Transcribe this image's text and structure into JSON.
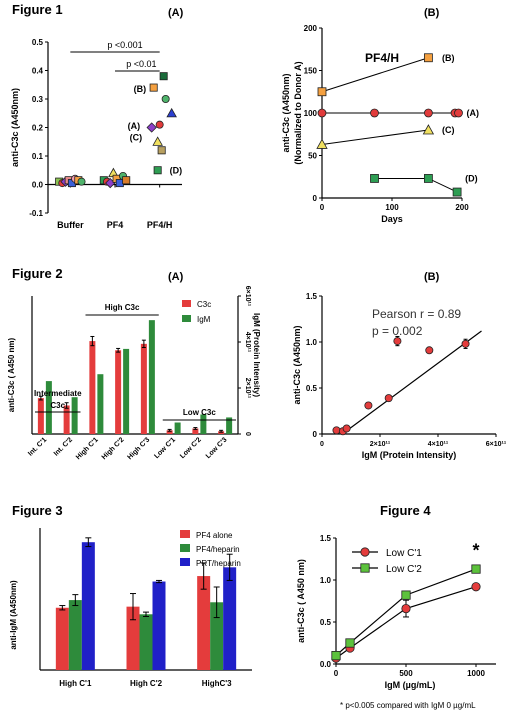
{
  "figures": {
    "fig1": "Figure 1",
    "fig2": "Figure 2",
    "fig3": "Figure 3",
    "fig4": "Figure 4",
    "panelA": "(A)",
    "panelB": "(B)"
  },
  "footnote": "* p<0.005 compared with IgM 0 µg/mL",
  "chart_data": [
    {
      "id": "fig1A",
      "type": "scatter",
      "ylabel": "anti-C3c (A450nm)",
      "ylim": [
        -0.1,
        0.5
      ],
      "yticks": [
        "-0.1",
        "0.0",
        "0.1",
        "0.2",
        "0.3",
        "0.4",
        "0.5"
      ],
      "categories": [
        "Buffer",
        "PF4",
        "PF4/H"
      ],
      "significance": [
        "p <0.001",
        "p <0.01"
      ],
      "point_labels": [
        "(A)",
        "(B)",
        "(C)",
        "(D)"
      ],
      "points": [
        {
          "cat": "Buffer",
          "y": 0.01,
          "shape": "square",
          "color": "#8cc152"
        },
        {
          "cat": "Buffer",
          "y": 0.005,
          "shape": "circle",
          "color": "#e13b3b"
        },
        {
          "cat": "Buffer",
          "y": 0.01,
          "shape": "diamond",
          "color": "#8b3fc8"
        },
        {
          "cat": "Buffer",
          "y": 0.015,
          "shape": "square",
          "color": "#e88a8a"
        },
        {
          "cat": "Buffer",
          "y": 0.005,
          "shape": "square",
          "color": "#3a5fd9"
        },
        {
          "cat": "Buffer",
          "y": 0.02,
          "shape": "circle",
          "color": "#f29ab0"
        },
        {
          "cat": "Buffer",
          "y": 0.015,
          "shape": "square",
          "color": "#f4a040"
        },
        {
          "cat": "Buffer",
          "y": 0.01,
          "shape": "circle",
          "color": "#4fb36b"
        },
        {
          "cat": "PF4",
          "y": 0.015,
          "shape": "square",
          "color": "#2e9e53"
        },
        {
          "cat": "PF4",
          "y": 0.01,
          "shape": "circle",
          "color": "#e13b3b"
        },
        {
          "cat": "PF4",
          "y": 0.005,
          "shape": "diamond",
          "color": "#8b3fc8"
        },
        {
          "cat": "PF4",
          "y": 0.04,
          "shape": "triangle",
          "color": "#f0e060"
        },
        {
          "cat": "PF4",
          "y": 0.02,
          "shape": "square",
          "color": "#f4a040"
        },
        {
          "cat": "PF4",
          "y": 0.005,
          "shape": "square",
          "color": "#3a5fd9"
        },
        {
          "cat": "PF4",
          "y": 0.03,
          "shape": "circle",
          "color": "#4fb36b"
        },
        {
          "cat": "PF4",
          "y": 0.015,
          "shape": "square",
          "color": "#d97c2b"
        },
        {
          "cat": "PF4/H",
          "y": 0.38,
          "shape": "square",
          "color": "#1b6b3a"
        },
        {
          "cat": "PF4/H",
          "y": 0.34,
          "shape": "square",
          "color": "#f4a040"
        },
        {
          "cat": "PF4/H",
          "y": 0.3,
          "shape": "circle",
          "color": "#4fb36b"
        },
        {
          "cat": "PF4/H",
          "y": 0.25,
          "shape": "triangle",
          "color": "#2b3fd0"
        },
        {
          "cat": "PF4/H",
          "y": 0.21,
          "shape": "circle",
          "color": "#e13b3b"
        },
        {
          "cat": "PF4/H",
          "y": 0.2,
          "shape": "diamond",
          "color": "#8b3fc8"
        },
        {
          "cat": "PF4/H",
          "y": 0.15,
          "shape": "triangle",
          "color": "#f0e060"
        },
        {
          "cat": "PF4/H",
          "y": 0.12,
          "shape": "square",
          "color": "#b8a060"
        },
        {
          "cat": "PF4/H",
          "y": 0.05,
          "shape": "square",
          "color": "#2e9e53"
        }
      ]
    },
    {
      "id": "fig1B",
      "type": "line",
      "title": "PF4/H",
      "ylabel": "anti-C3c (A450nm)",
      "ylabel2": "(Normalized to Donor A)",
      "xlabel": "Days",
      "ylim": [
        0,
        200
      ],
      "xlim": [
        0,
        200
      ],
      "yticks": [
        "0",
        "50",
        "100",
        "150",
        "200"
      ],
      "xticks": [
        "0",
        "100",
        "200"
      ],
      "series": [
        {
          "name": "(B)",
          "color": "#f4a040",
          "shape": "square",
          "x": [
            0,
            152
          ],
          "y": [
            125,
            165
          ]
        },
        {
          "name": "(A)",
          "color": "#e13b3b",
          "shape": "circle",
          "x": [
            0,
            75,
            152,
            190,
            195
          ],
          "y": [
            100,
            100,
            100,
            100,
            100
          ]
        },
        {
          "name": "(C)",
          "color": "#f0e060",
          "shape": "triangle",
          "x": [
            0,
            152
          ],
          "y": [
            63,
            80
          ]
        },
        {
          "name": "(D)",
          "color": "#2e9e53",
          "shape": "square",
          "x": [
            75,
            152,
            193
          ],
          "y": [
            23,
            23,
            7
          ]
        }
      ]
    },
    {
      "id": "fig2A",
      "type": "bar",
      "ylabel": "anti-C3c ( A450 nm)",
      "ylabel2": "IgM (Protein Intensity)",
      "ylim": [
        0,
        1.5
      ],
      "y2lim": [
        0,
        600000000000.0
      ],
      "y2ticks": [
        "0",
        "2×10¹¹",
        "4×10¹¹",
        "6×10¹¹"
      ],
      "categories": [
        "Int. C'1",
        "Int. C'2",
        "High C'1",
        "High C'2",
        "High C'3",
        "Low C'1",
        "Low C'2",
        "Low C'3"
      ],
      "group_labels": [
        "Intermediate",
        "C3c",
        "High C3c",
        "Low C3c"
      ],
      "series": [
        {
          "name": "C3c",
          "color": "#e43c3c",
          "values": [
            0.39,
            0.31,
            1.01,
            0.91,
            0.98,
            0.04,
            0.06,
            0.03
          ],
          "errors": [
            0.02,
            0.03,
            0.05,
            0.02,
            0.04,
            0.01,
            0.01,
            0.01
          ]
        },
        {
          "name": "IgM",
          "color": "#2e8b3b",
          "values2": [
            230000000000.0,
            160000000000.0,
            260000000000.0,
            370000000000.0,
            495000000000.0,
            50000000000.0,
            85000000000.0,
            72000000000.0
          ]
        }
      ]
    },
    {
      "id": "fig2B",
      "type": "scatter",
      "ylabel": "anti-C3c (A450nm)",
      "xlabel": "IgM (Protein Intensity)",
      "annotations": [
        "Pearson  r = 0.89",
        "p = 0.002"
      ],
      "xlim": [
        0,
        600000000000.0
      ],
      "ylim": [
        0,
        1.5
      ],
      "xticks": [
        "0",
        "2×10¹¹",
        "4×10¹¹",
        "6×10¹¹"
      ],
      "yticks": [
        "0",
        "0.5",
        "1.0",
        "1.5"
      ],
      "points": [
        {
          "x": 50000000000.0,
          "y": 0.04,
          "err": 0.01
        },
        {
          "x": 72000000000.0,
          "y": 0.03,
          "err": 0.01
        },
        {
          "x": 85000000000.0,
          "y": 0.06,
          "err": 0.01
        },
        {
          "x": 160000000000.0,
          "y": 0.31,
          "err": 0.03
        },
        {
          "x": 230000000000.0,
          "y": 0.39,
          "err": 0.02
        },
        {
          "x": 260000000000.0,
          "y": 1.01,
          "err": 0.05
        },
        {
          "x": 370000000000.0,
          "y": 0.91,
          "err": 0.02
        },
        {
          "x": 495000000000.0,
          "y": 0.98,
          "err": 0.05
        }
      ],
      "fit": {
        "x": [
          70000000000.0,
          550000000000.0
        ],
        "y": [
          0.0,
          1.12
        ]
      }
    },
    {
      "id": "fig3",
      "type": "bar",
      "ylabel": "anti-IgM (A450nm)",
      "categories": [
        "High C'1",
        "High C'2",
        "HighC'3"
      ],
      "ylim": [
        0,
        0.65
      ],
      "series": [
        {
          "name": "PF4 alone",
          "color": "#e43c3c",
          "values": [
            0.285,
            0.29,
            0.43
          ],
          "errors": [
            0.01,
            0.06,
            0.06
          ]
        },
        {
          "name": "PF4/heparin",
          "color": "#2e8b3b",
          "values": [
            0.32,
            0.255,
            0.31
          ],
          "errors": [
            0.025,
            0.01,
            0.07
          ]
        },
        {
          "name": "PRT/heparin",
          "color": "#2020c8",
          "values": [
            0.585,
            0.405,
            0.47
          ],
          "errors": [
            0.02,
            0.005,
            0.06
          ]
        }
      ]
    },
    {
      "id": "fig4",
      "type": "line",
      "ylabel": "anti-C3c ( A450 nm)",
      "xlabel": "IgM (µg/mL)",
      "xlim": [
        0,
        1000
      ],
      "ylim": [
        0,
        1.5
      ],
      "xticks": [
        "0",
        "500",
        "1000"
      ],
      "yticks": [
        "0.0",
        "0.5",
        "1.0",
        "1.5"
      ],
      "annotation": "*",
      "series": [
        {
          "name": "Low C'1",
          "color": "#e43c3c",
          "shape": "circle",
          "x": [
            0,
            100,
            500,
            1000
          ],
          "y": [
            0.07,
            0.19,
            0.66,
            0.92
          ],
          "errors": [
            0.02,
            0.02,
            0.1,
            0.02
          ]
        },
        {
          "name": "Low C'2",
          "color": "#5cc23c",
          "shape": "square",
          "x": [
            0,
            100,
            500,
            1000
          ],
          "y": [
            0.1,
            0.25,
            0.82,
            1.13
          ],
          "errors": [
            0.02,
            0.02,
            0.03,
            0.03
          ]
        }
      ]
    }
  ]
}
